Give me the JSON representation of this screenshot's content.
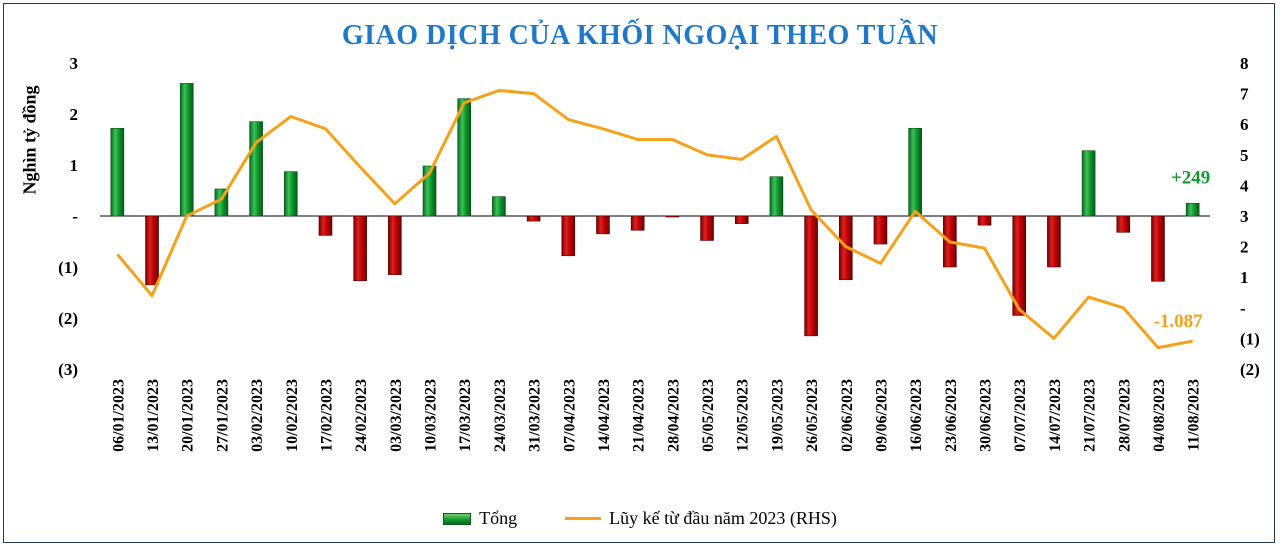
{
  "chart_data": {
    "type": "bar+line",
    "title": "GIAO DỊCH CỦA KHỐI NGOẠI THEO TUẦN",
    "ylabel": "Nghìn tỷ đồng",
    "y_left": {
      "ylim": [
        -3,
        3
      ],
      "ticks": [
        "3",
        "2",
        "1",
        "-",
        "(1)",
        "(2)",
        "(3)"
      ]
    },
    "y_right": {
      "ylim": [
        -2,
        8
      ],
      "ticks": [
        "8",
        "7",
        "6",
        "5",
        "4",
        "3",
        "2",
        "1",
        "-",
        "(1)",
        "(2)"
      ]
    },
    "categories": [
      "06/01/2023",
      "13/01/2023",
      "20/01/2023",
      "27/01/2023",
      "03/02/2023",
      "10/02/2023",
      "17/02/2023",
      "24/02/2023",
      "03/03/2023",
      "10/03/2023",
      "17/03/2023",
      "24/03/2023",
      "31/03/2023",
      "07/04/2023",
      "14/04/2023",
      "21/04/2023",
      "28/04/2023",
      "05/05/2023",
      "12/05/2023",
      "19/05/2023",
      "26/05/2023",
      "02/06/2023",
      "09/06/2023",
      "16/06/2023",
      "23/06/2023",
      "30/06/2023",
      "07/07/2023",
      "14/07/2023",
      "21/07/2023",
      "28/07/2023",
      "04/08/2023",
      "11/08/2023"
    ],
    "series": [
      {
        "name": "Tổng",
        "type": "bar",
        "values": [
          1.72,
          -1.35,
          2.6,
          0.53,
          1.85,
          0.87,
          -0.38,
          -1.27,
          -1.15,
          0.98,
          2.3,
          0.38,
          -0.1,
          -0.78,
          -0.35,
          -0.28,
          -0.02,
          -0.48,
          -0.15,
          0.77,
          -2.35,
          -1.25,
          -0.55,
          1.72,
          -1.0,
          -0.18,
          -1.95,
          -1.0,
          1.28,
          -0.32,
          -1.28,
          0.25
        ]
      },
      {
        "name": "Lũy kế từ đầu năm 2023 (RHS)",
        "type": "line",
        "values": [
          1.75,
          0.4,
          3.0,
          3.55,
          5.4,
          6.25,
          5.85,
          4.6,
          3.4,
          4.4,
          6.7,
          7.1,
          7.0,
          6.15,
          5.85,
          5.5,
          5.5,
          5.0,
          4.85,
          5.6,
          3.2,
          2.0,
          1.45,
          3.15,
          2.15,
          1.95,
          -0.05,
          -1.0,
          0.35,
          0.0,
          -1.3,
          -1.087
        ]
      }
    ],
    "annotations": {
      "last_bar": "+249",
      "last_line": "-1.087"
    },
    "colors": {
      "positive_bar": "#119a2d",
      "negative_bar": "#c00000",
      "line": "#f5a21a",
      "title": "#1f78c8"
    },
    "legend_position": "bottom"
  }
}
